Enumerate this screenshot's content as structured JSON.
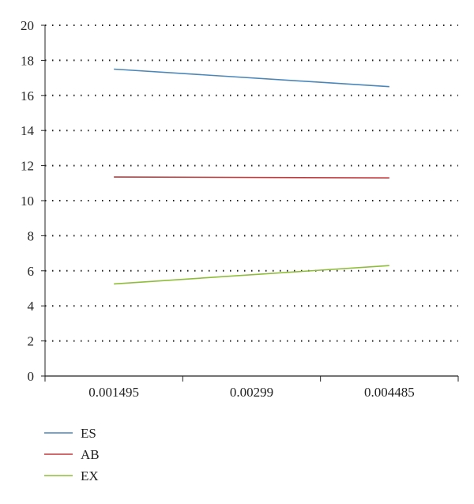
{
  "chart_data": {
    "type": "line",
    "title": "",
    "xlabel": "",
    "ylabel": "",
    "categories": [
      "0.001495",
      "0.00299",
      "0.004485"
    ],
    "ylim": [
      0,
      20
    ],
    "yticks": [
      0,
      2,
      4,
      6,
      8,
      10,
      12,
      14,
      16,
      18,
      20
    ],
    "grid": "horizontal-dotted",
    "legend_placement": "bottom-left",
    "series": [
      {
        "name": "ES",
        "color": "#4a86b8",
        "points": [
          {
            "x": "0.001495",
            "y": 17.5
          },
          {
            "x": "0.004485",
            "y": 16.5
          }
        ]
      },
      {
        "name": "AB",
        "color": "#c0393b",
        "points": [
          {
            "x": "0.001495",
            "y": 11.35
          },
          {
            "x": "0.004485",
            "y": 11.3
          }
        ]
      },
      {
        "name": "EX",
        "color": "#8fbd3a",
        "points": [
          {
            "x": "0.001495",
            "y": 5.25
          },
          {
            "x": "0.004485",
            "y": 6.3
          }
        ]
      }
    ]
  }
}
